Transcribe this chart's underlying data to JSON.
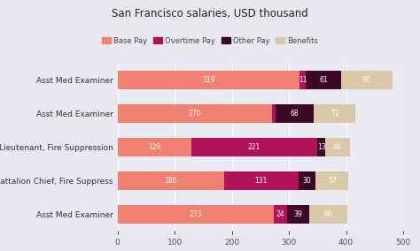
{
  "title": "San Francisco salaries, USD thousand",
  "categories": [
    "Asst Med Examiner",
    "Asst Med Examiner",
    "Lieutenant, Fire Suppression",
    "Battalion Chief, Fire Suppress",
    "Asst Med Examiner"
  ],
  "segments": {
    "Base Pay": [
      319,
      270,
      129,
      186,
      273
    ],
    "Overtime Pay": [
      11,
      6,
      221,
      131,
      24
    ],
    "Other Pay": [
      61,
      68,
      13,
      30,
      39
    ],
    "Benefits": [
      90,
      72,
      44,
      57,
      66
    ]
  },
  "colors": {
    "Base Pay": "#F08070",
    "Overtime Pay": "#B0135A",
    "Other Pay": "#3D0828",
    "Benefits": "#D9C9A8"
  },
  "bg_color": "#E8E8F0",
  "plot_bg": "#EAEAF2",
  "xlim": [
    0,
    500
  ],
  "xticks": [
    0,
    100,
    200,
    300,
    400,
    500
  ],
  "legend_order": [
    "Base Pay",
    "Overtime Pay",
    "Other Pay",
    "Benefits"
  ],
  "bar_height": 0.55,
  "text_color_light": "#ffffff"
}
